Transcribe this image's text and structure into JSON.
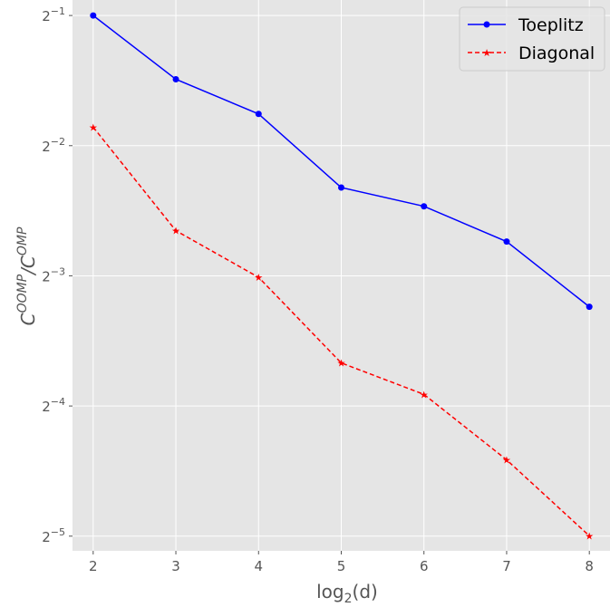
{
  "chart_data": {
    "type": "line",
    "xlabel_text": "log",
    "xlabel_sub": "2",
    "xlabel_arg": "(d)",
    "ylabel_base": "C",
    "ylabel_sup1": "OOMP",
    "ylabel_sep": "/C",
    "ylabel_sup2": "OMP",
    "x": [
      2,
      3,
      4,
      5,
      6,
      7,
      8
    ],
    "x_ticks": [
      2,
      3,
      4,
      5,
      6,
      7,
      8
    ],
    "xlim": [
      1.75,
      8.25
    ],
    "y_scale": "log2",
    "y_ticks": [
      {
        "value": 0.5,
        "base": "2",
        "exp": "−1"
      },
      {
        "value": 0.25,
        "base": "2",
        "exp": "−2"
      },
      {
        "value": 0.125,
        "base": "2",
        "exp": "−3"
      },
      {
        "value": 0.0625,
        "base": "2",
        "exp": "−4"
      },
      {
        "value": 0.03125,
        "base": "2",
        "exp": "−5"
      }
    ],
    "ylim": [
      0.0289,
      0.543
    ],
    "grid": true,
    "legend_position": "top-right",
    "series": [
      {
        "name": "Toeplitz",
        "color": "#0000ff",
        "linestyle": "solid",
        "marker": "circle",
        "values": [
          0.5,
          0.356,
          0.296,
          0.2,
          0.181,
          0.15,
          0.106
        ]
      },
      {
        "name": "Diagonal",
        "color": "#ff0000",
        "linestyle": "dashed",
        "marker": "star",
        "values": [
          0.276,
          0.159,
          0.124,
          0.0786,
          0.0665,
          0.0469,
          0.0313
        ]
      }
    ]
  }
}
